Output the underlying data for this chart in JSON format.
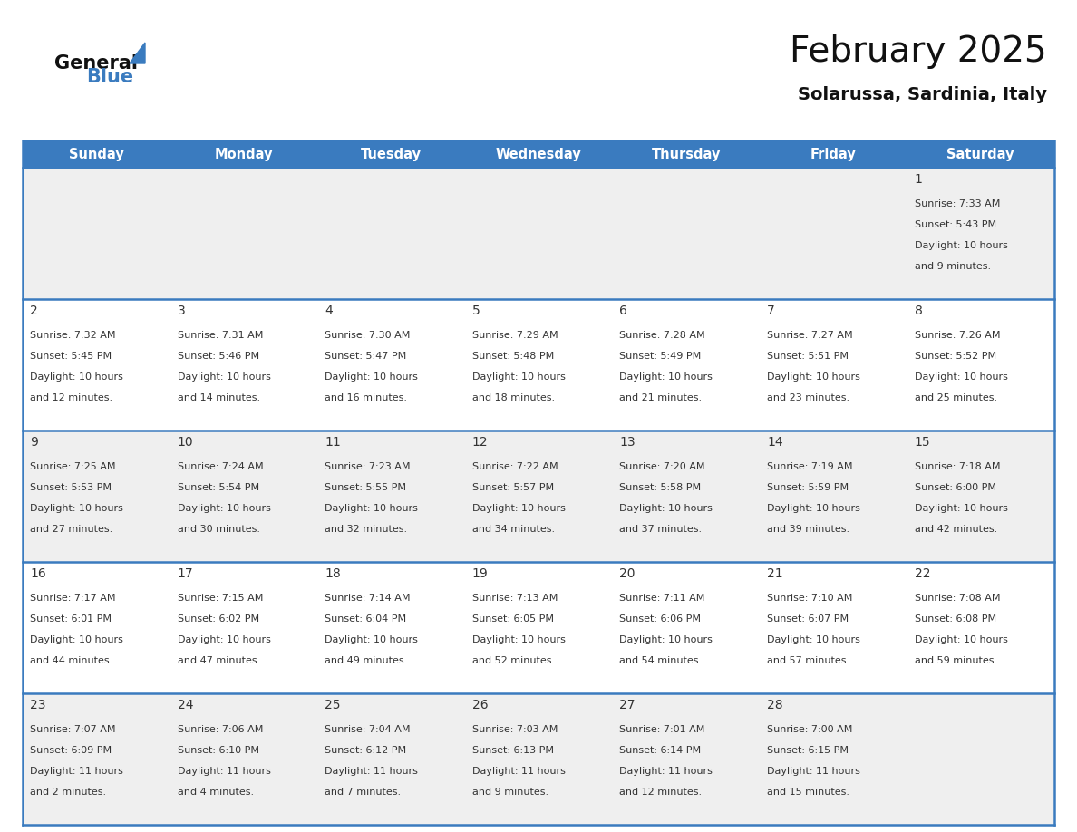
{
  "title": "February 2025",
  "subtitle": "Solarussa, Sardinia, Italy",
  "header_color": "#3a7bbf",
  "header_text_color": "#ffffff",
  "day_names": [
    "Sunday",
    "Monday",
    "Tuesday",
    "Wednesday",
    "Thursday",
    "Friday",
    "Saturday"
  ],
  "background_color": "#ffffff",
  "cell_bg_even": "#efefef",
  "cell_bg_odd": "#ffffff",
  "divider_color": "#3a7bbf",
  "text_color": "#333333",
  "num_color": "#333333",
  "weeks": [
    [
      null,
      null,
      null,
      null,
      null,
      null,
      1
    ],
    [
      2,
      3,
      4,
      5,
      6,
      7,
      8
    ],
    [
      9,
      10,
      11,
      12,
      13,
      14,
      15
    ],
    [
      16,
      17,
      18,
      19,
      20,
      21,
      22
    ],
    [
      23,
      24,
      25,
      26,
      27,
      28,
      null
    ]
  ],
  "day_data": {
    "1": {
      "sunrise": "7:33 AM",
      "sunset": "5:43 PM",
      "daylight_h": "10 hours",
      "daylight_m": "and 9 minutes."
    },
    "2": {
      "sunrise": "7:32 AM",
      "sunset": "5:45 PM",
      "daylight_h": "10 hours",
      "daylight_m": "and 12 minutes."
    },
    "3": {
      "sunrise": "7:31 AM",
      "sunset": "5:46 PM",
      "daylight_h": "10 hours",
      "daylight_m": "and 14 minutes."
    },
    "4": {
      "sunrise": "7:30 AM",
      "sunset": "5:47 PM",
      "daylight_h": "10 hours",
      "daylight_m": "and 16 minutes."
    },
    "5": {
      "sunrise": "7:29 AM",
      "sunset": "5:48 PM",
      "daylight_h": "10 hours",
      "daylight_m": "and 18 minutes."
    },
    "6": {
      "sunrise": "7:28 AM",
      "sunset": "5:49 PM",
      "daylight_h": "10 hours",
      "daylight_m": "and 21 minutes."
    },
    "7": {
      "sunrise": "7:27 AM",
      "sunset": "5:51 PM",
      "daylight_h": "10 hours",
      "daylight_m": "and 23 minutes."
    },
    "8": {
      "sunrise": "7:26 AM",
      "sunset": "5:52 PM",
      "daylight_h": "10 hours",
      "daylight_m": "and 25 minutes."
    },
    "9": {
      "sunrise": "7:25 AM",
      "sunset": "5:53 PM",
      "daylight_h": "10 hours",
      "daylight_m": "and 27 minutes."
    },
    "10": {
      "sunrise": "7:24 AM",
      "sunset": "5:54 PM",
      "daylight_h": "10 hours",
      "daylight_m": "and 30 minutes."
    },
    "11": {
      "sunrise": "7:23 AM",
      "sunset": "5:55 PM",
      "daylight_h": "10 hours",
      "daylight_m": "and 32 minutes."
    },
    "12": {
      "sunrise": "7:22 AM",
      "sunset": "5:57 PM",
      "daylight_h": "10 hours",
      "daylight_m": "and 34 minutes."
    },
    "13": {
      "sunrise": "7:20 AM",
      "sunset": "5:58 PM",
      "daylight_h": "10 hours",
      "daylight_m": "and 37 minutes."
    },
    "14": {
      "sunrise": "7:19 AM",
      "sunset": "5:59 PM",
      "daylight_h": "10 hours",
      "daylight_m": "and 39 minutes."
    },
    "15": {
      "sunrise": "7:18 AM",
      "sunset": "6:00 PM",
      "daylight_h": "10 hours",
      "daylight_m": "and 42 minutes."
    },
    "16": {
      "sunrise": "7:17 AM",
      "sunset": "6:01 PM",
      "daylight_h": "10 hours",
      "daylight_m": "and 44 minutes."
    },
    "17": {
      "sunrise": "7:15 AM",
      "sunset": "6:02 PM",
      "daylight_h": "10 hours",
      "daylight_m": "and 47 minutes."
    },
    "18": {
      "sunrise": "7:14 AM",
      "sunset": "6:04 PM",
      "daylight_h": "10 hours",
      "daylight_m": "and 49 minutes."
    },
    "19": {
      "sunrise": "7:13 AM",
      "sunset": "6:05 PM",
      "daylight_h": "10 hours",
      "daylight_m": "and 52 minutes."
    },
    "20": {
      "sunrise": "7:11 AM",
      "sunset": "6:06 PM",
      "daylight_h": "10 hours",
      "daylight_m": "and 54 minutes."
    },
    "21": {
      "sunrise": "7:10 AM",
      "sunset": "6:07 PM",
      "daylight_h": "10 hours",
      "daylight_m": "and 57 minutes."
    },
    "22": {
      "sunrise": "7:08 AM",
      "sunset": "6:08 PM",
      "daylight_h": "10 hours",
      "daylight_m": "and 59 minutes."
    },
    "23": {
      "sunrise": "7:07 AM",
      "sunset": "6:09 PM",
      "daylight_h": "11 hours",
      "daylight_m": "and 2 minutes."
    },
    "24": {
      "sunrise": "7:06 AM",
      "sunset": "6:10 PM",
      "daylight_h": "11 hours",
      "daylight_m": "and 4 minutes."
    },
    "25": {
      "sunrise": "7:04 AM",
      "sunset": "6:12 PM",
      "daylight_h": "11 hours",
      "daylight_m": "and 7 minutes."
    },
    "26": {
      "sunrise": "7:03 AM",
      "sunset": "6:13 PM",
      "daylight_h": "11 hours",
      "daylight_m": "and 9 minutes."
    },
    "27": {
      "sunrise": "7:01 AM",
      "sunset": "6:14 PM",
      "daylight_h": "11 hours",
      "daylight_m": "and 12 minutes."
    },
    "28": {
      "sunrise": "7:00 AM",
      "sunset": "6:15 PM",
      "daylight_h": "11 hours",
      "daylight_m": "and 15 minutes."
    }
  },
  "fig_width": 11.88,
  "fig_height": 9.18,
  "dpi": 100,
  "logo_general_size": 15,
  "logo_blue_size": 15,
  "title_fontsize": 28,
  "subtitle_fontsize": 14,
  "header_fontsize": 10.5,
  "day_num_fontsize": 10,
  "cell_text_fontsize": 8
}
